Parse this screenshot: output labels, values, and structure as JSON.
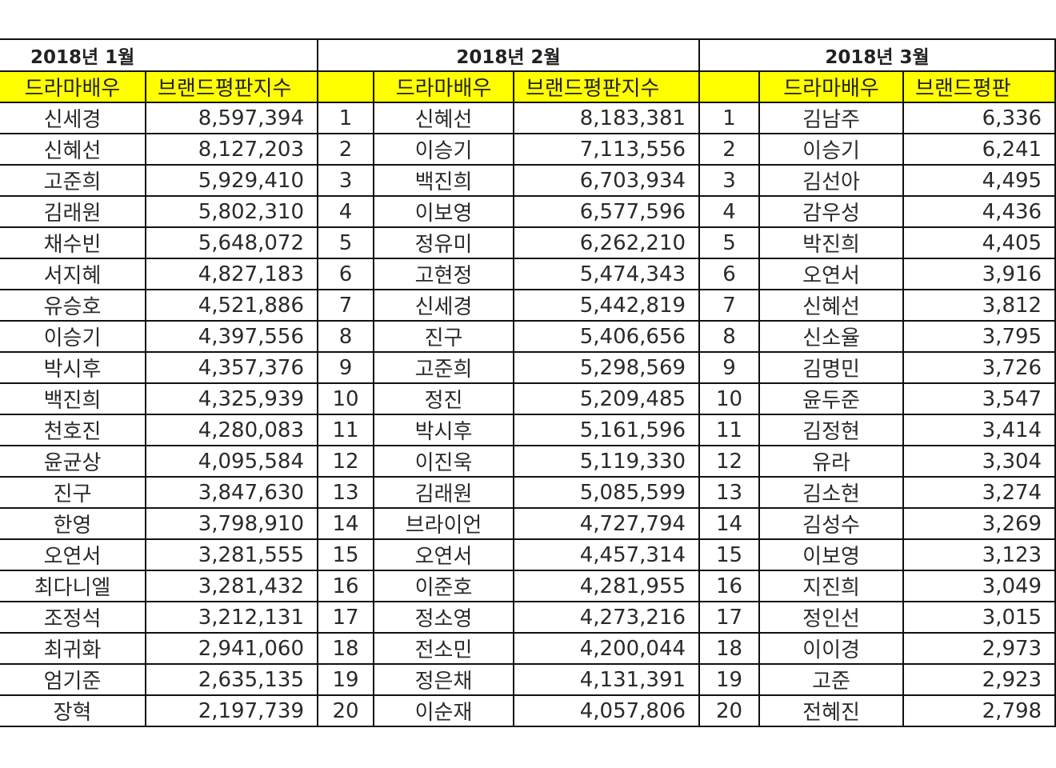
{
  "months": [
    "2018년 1월",
    "2018년 2월",
    "2018년 3월"
  ],
  "headers": {
    "actor": "드라마배우",
    "index": "브랜드평판지수",
    "index_clipped": "브랜드평판"
  },
  "rows": [
    {
      "jan_name": "신세경",
      "jan_value": "8,597,394",
      "feb_rank": "1",
      "feb_name": "신혜선",
      "feb_value": "8,183,381",
      "mar_rank": "1",
      "mar_name": "김남주",
      "mar_value": "6,336"
    },
    {
      "jan_name": "신혜선",
      "jan_value": "8,127,203",
      "feb_rank": "2",
      "feb_name": "이승기",
      "feb_value": "7,113,556",
      "mar_rank": "2",
      "mar_name": "이승기",
      "mar_value": "6,241"
    },
    {
      "jan_name": "고준희",
      "jan_value": "5,929,410",
      "feb_rank": "3",
      "feb_name": "백진희",
      "feb_value": "6,703,934",
      "mar_rank": "3",
      "mar_name": "김선아",
      "mar_value": "4,495"
    },
    {
      "jan_name": "김래원",
      "jan_value": "5,802,310",
      "feb_rank": "4",
      "feb_name": "이보영",
      "feb_value": "6,577,596",
      "mar_rank": "4",
      "mar_name": "감우성",
      "mar_value": "4,436"
    },
    {
      "jan_name": "채수빈",
      "jan_value": "5,648,072",
      "feb_rank": "5",
      "feb_name": "정유미",
      "feb_value": "6,262,210",
      "mar_rank": "5",
      "mar_name": "박진희",
      "mar_value": "4,405"
    },
    {
      "jan_name": "서지혜",
      "jan_value": "4,827,183",
      "feb_rank": "6",
      "feb_name": "고현정",
      "feb_value": "5,474,343",
      "mar_rank": "6",
      "mar_name": "오연서",
      "mar_value": "3,916"
    },
    {
      "jan_name": "유승호",
      "jan_value": "4,521,886",
      "feb_rank": "7",
      "feb_name": "신세경",
      "feb_value": "5,442,819",
      "mar_rank": "7",
      "mar_name": "신혜선",
      "mar_value": "3,812"
    },
    {
      "jan_name": "이승기",
      "jan_value": "4,397,556",
      "feb_rank": "8",
      "feb_name": "진구",
      "feb_value": "5,406,656",
      "mar_rank": "8",
      "mar_name": "신소율",
      "mar_value": "3,795"
    },
    {
      "jan_name": "박시후",
      "jan_value": "4,357,376",
      "feb_rank": "9",
      "feb_name": "고준희",
      "feb_value": "5,298,569",
      "mar_rank": "9",
      "mar_name": "김명민",
      "mar_value": "3,726"
    },
    {
      "jan_name": "백진희",
      "jan_value": "4,325,939",
      "feb_rank": "10",
      "feb_name": "정진",
      "feb_value": "5,209,485",
      "mar_rank": "10",
      "mar_name": "윤두준",
      "mar_value": "3,547"
    },
    {
      "jan_name": "천호진",
      "jan_value": "4,280,083",
      "feb_rank": "11",
      "feb_name": "박시후",
      "feb_value": "5,161,596",
      "mar_rank": "11",
      "mar_name": "김정현",
      "mar_value": "3,414"
    },
    {
      "jan_name": "윤균상",
      "jan_value": "4,095,584",
      "feb_rank": "12",
      "feb_name": "이진욱",
      "feb_value": "5,119,330",
      "mar_rank": "12",
      "mar_name": "유라",
      "mar_value": "3,304"
    },
    {
      "jan_name": "진구",
      "jan_value": "3,847,630",
      "feb_rank": "13",
      "feb_name": "김래원",
      "feb_value": "5,085,599",
      "mar_rank": "13",
      "mar_name": "김소현",
      "mar_value": "3,274"
    },
    {
      "jan_name": "한영",
      "jan_value": "3,798,910",
      "feb_rank": "14",
      "feb_name": "브라이언",
      "feb_value": "4,727,794",
      "mar_rank": "14",
      "mar_name": "김성수",
      "mar_value": "3,269"
    },
    {
      "jan_name": "오연서",
      "jan_value": "3,281,555",
      "feb_rank": "15",
      "feb_name": "오연서",
      "feb_value": "4,457,314",
      "mar_rank": "15",
      "mar_name": "이보영",
      "mar_value": "3,123"
    },
    {
      "jan_name": "최다니엘",
      "jan_value": "3,281,432",
      "feb_rank": "16",
      "feb_name": "이준호",
      "feb_value": "4,281,955",
      "mar_rank": "16",
      "mar_name": "지진희",
      "mar_value": "3,049"
    },
    {
      "jan_name": "조정석",
      "jan_value": "3,212,131",
      "feb_rank": "17",
      "feb_name": "정소영",
      "feb_value": "4,273,216",
      "mar_rank": "17",
      "mar_name": "정인선",
      "mar_value": "3,015"
    },
    {
      "jan_name": "최귀화",
      "jan_value": "2,941,060",
      "feb_rank": "18",
      "feb_name": "전소민",
      "feb_value": "4,200,044",
      "mar_rank": "18",
      "mar_name": "이이경",
      "mar_value": "2,973"
    },
    {
      "jan_name": "엄기준",
      "jan_value": "2,635,135",
      "feb_rank": "19",
      "feb_name": "정은채",
      "feb_value": "4,131,391",
      "mar_rank": "19",
      "mar_name": "고준",
      "mar_value": "2,923"
    },
    {
      "jan_name": "장혁",
      "jan_value": "2,197,739",
      "feb_rank": "20",
      "feb_name": "이순재",
      "feb_value": "4,057,806",
      "mar_rank": "20",
      "mar_name": "전혜진",
      "mar_value": "2,798"
    }
  ],
  "colors": {
    "header_background": "#ffff00",
    "border": "#111111",
    "text": "#2a2a2a"
  }
}
